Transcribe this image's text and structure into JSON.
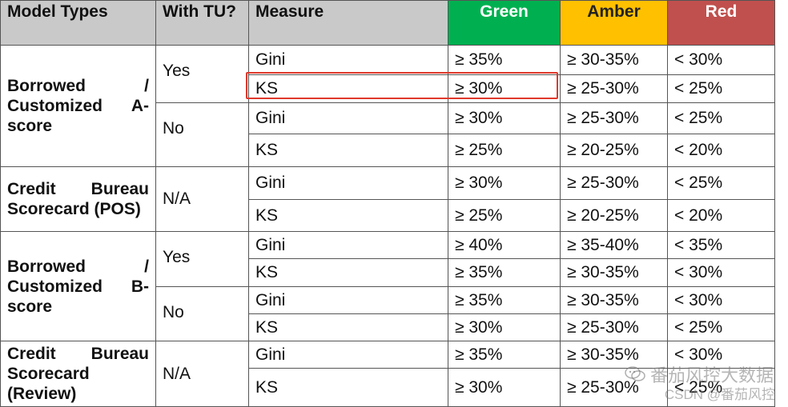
{
  "headers": {
    "model_types": "Model Types",
    "with_tu": "With TU?",
    "measure": "Measure",
    "green": "Green",
    "amber": "Amber",
    "red": "Red"
  },
  "colors": {
    "green": "#00b050",
    "amber": "#ffc000",
    "red": "#c0504d",
    "header_gray": "#c9c9c9",
    "highlight_border": "#e0392b"
  },
  "groups": [
    {
      "model": "Borrowed / Customized A-score",
      "subgroups": [
        {
          "tu": "Yes",
          "rows": [
            {
              "measure": "Gini",
              "green": "≥ 35%",
              "amber": "≥ 30-35%",
              "red": "< 30%"
            },
            {
              "measure": "KS",
              "green": "≥ 30%",
              "amber": "≥ 25-30%",
              "red": "< 25%"
            }
          ]
        },
        {
          "tu": "No",
          "rows": [
            {
              "measure": "Gini",
              "green": "≥ 30%",
              "amber": "≥ 25-30%",
              "red": "< 25%"
            },
            {
              "measure": "KS",
              "green": "≥ 25%",
              "amber": "≥ 20-25%",
              "red": "< 20%"
            }
          ]
        }
      ]
    },
    {
      "model": "Credit Bureau Scorecard (POS)",
      "subgroups": [
        {
          "tu": "N/A",
          "rows": [
            {
              "measure": "Gini",
              "green": "≥ 30%",
              "amber": "≥ 25-30%",
              "red": "< 25%"
            },
            {
              "measure": "KS",
              "green": "≥ 25%",
              "amber": "≥ 20-25%",
              "red": "< 20%"
            }
          ]
        }
      ]
    },
    {
      "model": "Borrowed / Customized B-score",
      "subgroups": [
        {
          "tu": "Yes",
          "rows": [
            {
              "measure": "Gini",
              "green": "≥ 40%",
              "amber": "≥ 35-40%",
              "red": "< 35%"
            },
            {
              "measure": "KS",
              "green": "≥ 35%",
              "amber": "≥ 30-35%",
              "red": "< 30%"
            }
          ]
        },
        {
          "tu": "No",
          "rows": [
            {
              "measure": "Gini",
              "green": "≥ 35%",
              "amber": "≥ 30-35%",
              "red": "< 30%"
            },
            {
              "measure": "KS",
              "green": "≥ 30%",
              "amber": "≥ 25-30%",
              "red": "< 25%"
            }
          ]
        }
      ]
    },
    {
      "model": "Credit Bureau Scorecard (Review)",
      "subgroups": [
        {
          "tu": "N/A",
          "rows": [
            {
              "measure": "Gini",
              "green": "≥ 35%",
              "amber": "≥ 30-35%",
              "red": "< 30%"
            },
            {
              "measure": "KS",
              "green": "≥ 30%",
              "amber": "≥ 25-30%",
              "red": "< 25%"
            }
          ]
        }
      ]
    }
  ],
  "watermark": {
    "icon": "wechat-icon",
    "channel": "番茄风控大数据",
    "csdn": "CSDN @番茄风控"
  }
}
